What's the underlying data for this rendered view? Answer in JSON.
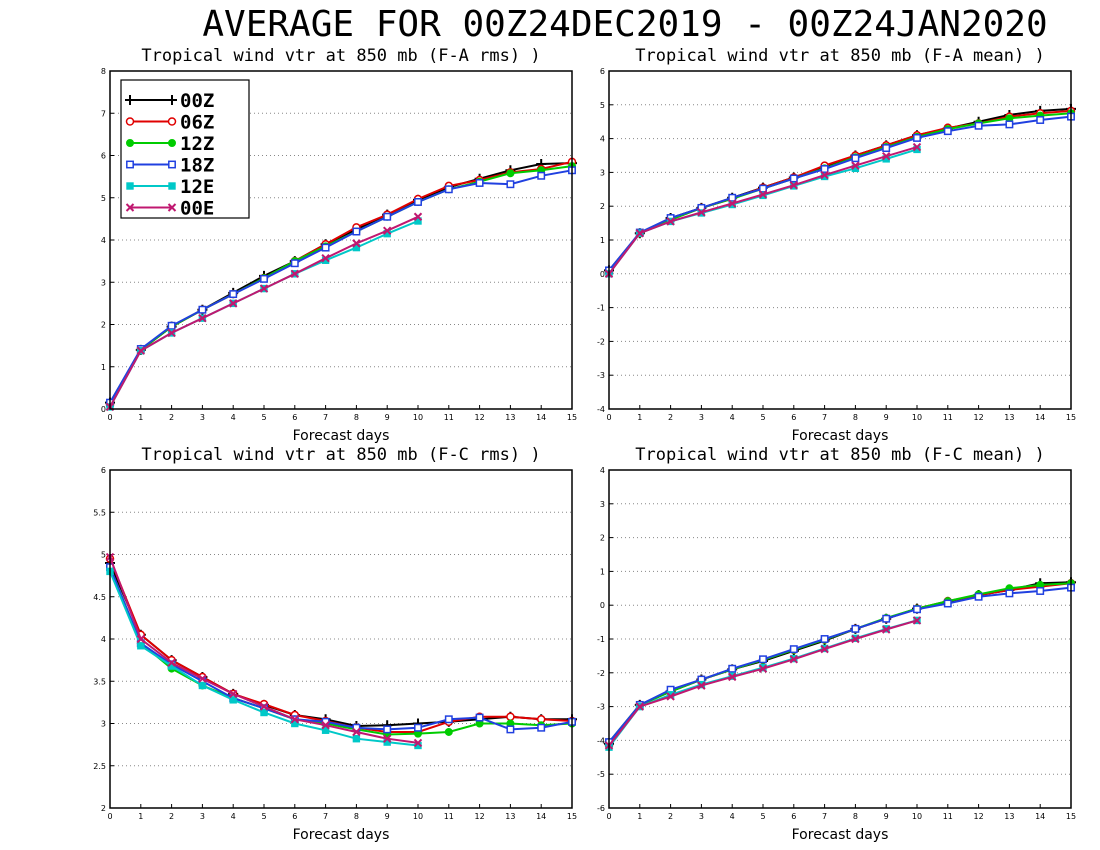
{
  "page": {
    "title": "AVERAGE FOR 00Z24DEC2019 - 00Z24JAN2020"
  },
  "legend": {
    "entries": [
      "00Z",
      "06Z",
      "12Z",
      "18Z",
      "12E",
      "00E"
    ]
  },
  "series_style": [
    {
      "name": "00Z",
      "color": "#000000",
      "marker": "plus"
    },
    {
      "name": "06Z",
      "color": "#e00000",
      "marker": "open-circle"
    },
    {
      "name": "12Z",
      "color": "#00cc00",
      "marker": "filled-circle"
    },
    {
      "name": "18Z",
      "color": "#2040e0",
      "marker": "open-square"
    },
    {
      "name": "12E",
      "color": "#00c8c8",
      "marker": "filled-square"
    },
    {
      "name": "00E",
      "color": "#c01870",
      "marker": "x"
    }
  ],
  "chart_data": [
    {
      "type": "line",
      "title": "Tropical wind vtr at 850 mb (F-A rms) )",
      "xlabel": "Forecast days",
      "ylabel": "",
      "x": [
        0,
        1,
        2,
        3,
        4,
        5,
        6,
        7,
        8,
        9,
        10,
        11,
        12,
        13,
        14,
        15
      ],
      "xlim": [
        0,
        15
      ],
      "ylim": [
        0,
        8
      ],
      "yticks": [
        0,
        1,
        2,
        3,
        4,
        5,
        6,
        7,
        8
      ],
      "xticks": [
        0,
        1,
        2,
        3,
        4,
        5,
        6,
        7,
        8,
        9,
        10,
        11,
        12,
        13,
        14,
        15
      ],
      "grid": true,
      "legend": "top-left",
      "series": [
        {
          "name": "00Z",
          "values": [
            0.15,
            1.4,
            1.95,
            2.35,
            2.75,
            3.15,
            3.5,
            3.9,
            4.25,
            4.6,
            4.95,
            5.25,
            5.45,
            5.65,
            5.8,
            5.82
          ]
        },
        {
          "name": "06Z",
          "values": [
            0.1,
            1.4,
            1.95,
            2.35,
            2.72,
            3.1,
            3.5,
            3.9,
            4.3,
            4.6,
            4.97,
            5.28,
            5.42,
            5.6,
            5.68,
            5.85
          ]
        },
        {
          "name": "12Z",
          "values": [
            0.1,
            1.4,
            1.95,
            2.35,
            2.72,
            3.1,
            3.5,
            3.85,
            4.2,
            4.55,
            4.9,
            5.2,
            5.38,
            5.58,
            5.65,
            5.75
          ]
        },
        {
          "name": "18Z",
          "values": [
            0.15,
            1.42,
            1.97,
            2.35,
            2.72,
            3.08,
            3.45,
            3.82,
            4.2,
            4.55,
            4.9,
            5.2,
            5.35,
            5.32,
            5.52,
            5.65
          ]
        },
        {
          "name": "12E",
          "values": [
            0.05,
            1.38,
            1.8,
            2.15,
            2.5,
            2.85,
            3.2,
            3.52,
            3.82,
            4.15,
            4.45,
            null,
            null,
            null,
            null,
            null
          ]
        },
        {
          "name": "00E",
          "values": [
            0.05,
            1.38,
            1.8,
            2.15,
            2.5,
            2.85,
            3.2,
            3.57,
            3.92,
            4.22,
            4.55,
            null,
            null,
            null,
            null,
            null
          ]
        }
      ]
    },
    {
      "type": "line",
      "title": "Tropical wind vtr at 850 mb (F-A mean) )",
      "xlabel": "Forecast days",
      "ylabel": "",
      "x": [
        0,
        1,
        2,
        3,
        4,
        5,
        6,
        7,
        8,
        9,
        10,
        11,
        12,
        13,
        14,
        15
      ],
      "xlim": [
        0,
        15
      ],
      "ylim": [
        -4,
        6
      ],
      "yticks": [
        -4,
        -3,
        -2,
        -1,
        0,
        1,
        2,
        3,
        4,
        5,
        6
      ],
      "xticks": [
        0,
        1,
        2,
        3,
        4,
        5,
        6,
        7,
        8,
        9,
        10,
        11,
        12,
        13,
        14,
        15
      ],
      "grid": true,
      "series": [
        {
          "name": "00Z",
          "values": [
            0.1,
            1.2,
            1.65,
            1.95,
            2.25,
            2.55,
            2.85,
            3.15,
            3.5,
            3.8,
            4.1,
            4.3,
            4.5,
            4.7,
            4.82,
            4.88
          ]
        },
        {
          "name": "06Z",
          "values": [
            0.05,
            1.2,
            1.6,
            1.95,
            2.22,
            2.55,
            2.85,
            3.2,
            3.5,
            3.8,
            4.1,
            4.32,
            4.45,
            4.65,
            4.75,
            4.82
          ]
        },
        {
          "name": "12Z",
          "values": [
            0.05,
            1.2,
            1.6,
            1.95,
            2.22,
            2.52,
            2.82,
            3.12,
            3.45,
            3.75,
            4.05,
            4.28,
            4.45,
            4.6,
            4.68,
            4.75
          ]
        },
        {
          "name": "18Z",
          "values": [
            0.1,
            1.22,
            1.65,
            1.95,
            2.25,
            2.52,
            2.82,
            3.1,
            3.42,
            3.72,
            4.02,
            4.22,
            4.38,
            4.42,
            4.55,
            4.65
          ]
        },
        {
          "name": "12E",
          "values": [
            0.0,
            1.2,
            1.55,
            1.8,
            2.05,
            2.32,
            2.6,
            2.88,
            3.12,
            3.4,
            3.68,
            null,
            null,
            null,
            null,
            null
          ]
        },
        {
          "name": "00E",
          "values": [
            0.0,
            1.2,
            1.55,
            1.82,
            2.08,
            2.35,
            2.62,
            2.92,
            3.2,
            3.48,
            3.75,
            null,
            null,
            null,
            null,
            null
          ]
        }
      ]
    },
    {
      "type": "line",
      "title": "Tropical wind vtr at 850 mb (F-C rms) )",
      "xlabel": "Forecast days",
      "ylabel": "",
      "x": [
        0,
        1,
        2,
        3,
        4,
        5,
        6,
        7,
        8,
        9,
        10,
        11,
        12,
        13,
        14,
        15
      ],
      "xlim": [
        0,
        15
      ],
      "ylim": [
        2,
        6
      ],
      "yticks": [
        2,
        2.5,
        3,
        3.5,
        4,
        4.5,
        5,
        5.5,
        6
      ],
      "xticks": [
        0,
        1,
        2,
        3,
        4,
        5,
        6,
        7,
        8,
        9,
        10,
        11,
        12,
        13,
        14,
        15
      ],
      "grid": true,
      "series": [
        {
          "name": "00Z",
          "values": [
            4.9,
            4.05,
            3.75,
            3.55,
            3.35,
            3.22,
            3.1,
            3.05,
            2.97,
            2.98,
            3.0,
            3.02,
            3.05,
            3.08,
            3.05,
            3.05
          ]
        },
        {
          "name": "06Z",
          "values": [
            4.95,
            4.05,
            3.75,
            3.55,
            3.35,
            3.23,
            3.1,
            3.03,
            2.95,
            2.9,
            2.9,
            3.02,
            3.08,
            3.08,
            3.05,
            3.03
          ]
        },
        {
          "name": "12Z",
          "values": [
            4.85,
            3.95,
            3.65,
            3.45,
            3.3,
            3.18,
            3.05,
            3.0,
            2.93,
            2.87,
            2.88,
            2.9,
            3.0,
            3.0,
            2.98,
            3.0
          ]
        },
        {
          "name": "18Z",
          "values": [
            4.85,
            3.95,
            3.7,
            3.5,
            3.3,
            3.18,
            3.05,
            3.02,
            2.95,
            2.93,
            2.95,
            3.05,
            3.07,
            2.93,
            2.95,
            3.02
          ]
        },
        {
          "name": "12E",
          "values": [
            4.8,
            3.92,
            3.68,
            3.45,
            3.28,
            3.13,
            3.0,
            2.92,
            2.82,
            2.78,
            2.74,
            null,
            null,
            null,
            null,
            null
          ]
        },
        {
          "name": "00E",
          "values": [
            4.97,
            4.0,
            3.72,
            3.53,
            3.35,
            3.2,
            3.05,
            2.98,
            2.9,
            2.82,
            2.77,
            null,
            null,
            null,
            null,
            null
          ]
        }
      ]
    },
    {
      "type": "line",
      "title": "Tropical wind vtr at 850 mb (F-C mean) )",
      "xlabel": "Forecast days",
      "ylabel": "",
      "x": [
        0,
        1,
        2,
        3,
        4,
        5,
        6,
        7,
        8,
        9,
        10,
        11,
        12,
        13,
        14,
        15
      ],
      "xlim": [
        0,
        15
      ],
      "ylim": [
        -6,
        4
      ],
      "yticks": [
        -6,
        -5,
        -4,
        -3,
        -2,
        -1,
        0,
        1,
        2,
        3,
        4
      ],
      "xticks": [
        0,
        1,
        2,
        3,
        4,
        5,
        6,
        7,
        8,
        9,
        10,
        11,
        12,
        13,
        14,
        15
      ],
      "grid": true,
      "series": [
        {
          "name": "00Z",
          "values": [
            -4.1,
            -2.95,
            -2.55,
            -2.2,
            -1.9,
            -1.65,
            -1.35,
            -1.05,
            -0.7,
            -0.4,
            -0.1,
            0.1,
            0.3,
            0.45,
            0.65,
            0.68
          ]
        },
        {
          "name": "06Z",
          "values": [
            -4.15,
            -2.95,
            -2.55,
            -2.2,
            -1.9,
            -1.62,
            -1.32,
            -1.02,
            -0.7,
            -0.4,
            -0.1,
            0.12,
            0.3,
            0.45,
            0.55,
            0.65
          ]
        },
        {
          "name": "12Z",
          "values": [
            -4.05,
            -2.95,
            -2.55,
            -2.2,
            -1.9,
            -1.62,
            -1.32,
            -1.02,
            -0.7,
            -0.38,
            -0.1,
            0.12,
            0.32,
            0.5,
            0.6,
            0.65
          ]
        },
        {
          "name": "18Z",
          "values": [
            -4.05,
            -2.95,
            -2.5,
            -2.2,
            -1.88,
            -1.6,
            -1.3,
            -1.0,
            -0.7,
            -0.4,
            -0.12,
            0.05,
            0.25,
            0.35,
            0.42,
            0.52
          ]
        },
        {
          "name": "12E",
          "values": [
            -4.2,
            -3.0,
            -2.65,
            -2.35,
            -2.1,
            -1.85,
            -1.58,
            -1.28,
            -0.98,
            -0.7,
            -0.45,
            null,
            null,
            null,
            null,
            null
          ]
        },
        {
          "name": "00E",
          "values": [
            -4.15,
            -3.0,
            -2.7,
            -2.38,
            -2.12,
            -1.88,
            -1.6,
            -1.3,
            -1.0,
            -0.72,
            -0.45,
            null,
            null,
            null,
            null,
            null
          ]
        }
      ]
    }
  ]
}
